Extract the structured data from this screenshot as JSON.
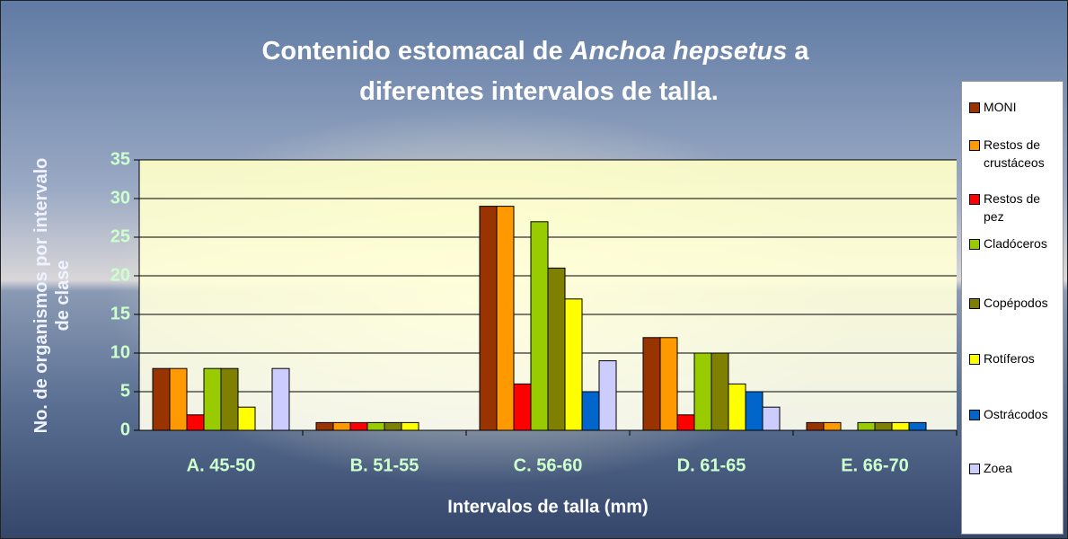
{
  "chart_data": {
    "type": "bar",
    "title": [
      "Contenido estomacal de",
      "Anchoa hepsetus",
      "a",
      "diferentes intervalos de talla."
    ],
    "x_label": "Intervalos de talla (mm)",
    "y_label": "No. de organismos por intervalo de clase",
    "categories": [
      "A. 45-50",
      "B. 51-55",
      "C. 56-60",
      "D. 61-65",
      "E. 66-70"
    ],
    "series": [
      {
        "name": "MONI",
        "color": "#993300",
        "values": [
          8,
          1,
          29,
          12,
          1
        ]
      },
      {
        "name": "Restos de crustáceos",
        "color": "#ff9900",
        "values": [
          8,
          1,
          29,
          12,
          1
        ]
      },
      {
        "name": "Restos de pez",
        "color": "#ff0000",
        "values": [
          2,
          1,
          6,
          2,
          0
        ]
      },
      {
        "name": "Cladóceros",
        "color": "#99cc00",
        "values": [
          8,
          1,
          27,
          10,
          1
        ]
      },
      {
        "name": "Copépodos",
        "color": "#808000",
        "values": [
          8,
          1,
          21,
          10,
          1
        ]
      },
      {
        "name": "Rotíferos",
        "color": "#ffff00",
        "values": [
          3,
          1,
          17,
          6,
          1
        ]
      },
      {
        "name": "Ostrácodos",
        "color": "#0066cc",
        "values": [
          0,
          0,
          5,
          5,
          1
        ]
      },
      {
        "name": "Zoea",
        "color": "#ccccff",
        "values": [
          8,
          0,
          9,
          3,
          0
        ]
      }
    ],
    "ylim": [
      0,
      35
    ],
    "yticks": [
      0,
      5,
      10,
      15,
      20,
      25,
      30,
      35
    ],
    "grid": true,
    "legend": "right"
  }
}
